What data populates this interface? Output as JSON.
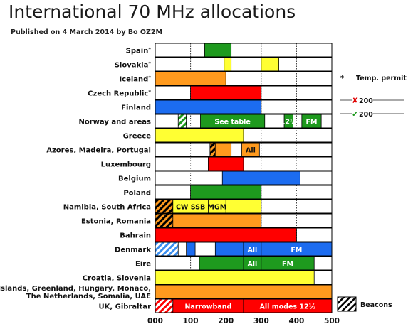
{
  "title": "International 70 MHz allocations",
  "subtitle": "Published on 4 March 2014 by Bo OZ2M",
  "colors": {
    "green": "#1e9a1e",
    "yellow": "#ffff33",
    "orange": "#ff9a1e",
    "red": "#ff0000",
    "blue": "#1c6cf0",
    "lightblue": "#3b8ff0"
  },
  "notes": {
    "temp_permit_marker": "*",
    "temp_permit_label": "Temp. permit",
    "cross_label": "200",
    "check_label": "200",
    "beacons_label": "Beacons"
  },
  "chart_data": {
    "type": "bar",
    "orientation": "horizontal",
    "xlabel": "",
    "ylabel": "",
    "xlim": [
      0,
      500
    ],
    "x_ticks": [
      0,
      100,
      200,
      300,
      400,
      500
    ],
    "x_tick_labels": [
      "000",
      "100",
      "200",
      "300",
      "400",
      "500"
    ],
    "grid": true,
    "categories": [
      "Spain*",
      "Slovakia*",
      "Iceland*",
      "Czech Republic*",
      "Finland",
      "Norway and areas",
      "Greece",
      "Azores, Madeira, Portugal",
      "Luxembourg",
      "Belgium",
      "Poland",
      "Namibia, South Africa",
      "Estonia, Romania",
      "Bahrain",
      "Denmark",
      "Eire",
      "Croatia, Slovenia",
      "Faeroe Islands, Greenland, Hungary, Monaco, The Netherlands, Somalia, UAE",
      "UK, Gibraltar"
    ],
    "rows": [
      {
        "label": "Spain",
        "mark": "*",
        "segments": [
          {
            "from": 140,
            "to": 215,
            "color": "green"
          }
        ]
      },
      {
        "label": "Slovakia",
        "mark": "*",
        "segments": [
          {
            "from": 195,
            "to": 215,
            "color": "yellow"
          },
          {
            "from": 300,
            "to": 350,
            "color": "yellow"
          }
        ]
      },
      {
        "label": "Iceland",
        "mark": "*",
        "segments": [
          {
            "from": 0,
            "to": 200,
            "color": "orange"
          }
        ]
      },
      {
        "label": "Czech Republic",
        "mark": "*",
        "segments": [
          {
            "from": 100,
            "to": 300,
            "color": "red"
          }
        ]
      },
      {
        "label": "Finland",
        "mark": "",
        "segments": [
          {
            "from": 0,
            "to": 300,
            "color": "blue"
          }
        ]
      },
      {
        "label": "Norway and areas",
        "mark": "",
        "segments": [
          {
            "from": 65,
            "to": 88,
            "color": "green",
            "pattern": "hatch-green"
          },
          {
            "from": 128,
            "to": 310,
            "color": "green",
            "text": "See table"
          },
          {
            "from": 365,
            "to": 390,
            "color": "green",
            "text": "12½"
          },
          {
            "from": 415,
            "to": 470,
            "color": "green",
            "text": "FM"
          }
        ]
      },
      {
        "label": "Greece",
        "mark": "",
        "segments": [
          {
            "from": 0,
            "to": 250,
            "color": "yellow"
          }
        ]
      },
      {
        "label": "Azores, Madeira, Portugal",
        "mark": "",
        "segments": [
          {
            "from": 155,
            "to": 170,
            "color": "orange",
            "pattern": "hatch-black"
          },
          {
            "from": 170,
            "to": 215,
            "color": "orange"
          },
          {
            "from": 245,
            "to": 295,
            "color": "orange",
            "text": "All"
          }
        ]
      },
      {
        "label": "Luxembourg",
        "mark": "",
        "segments": [
          {
            "from": 150,
            "to": 250,
            "color": "red"
          }
        ]
      },
      {
        "label": "Belgium",
        "mark": "",
        "segments": [
          {
            "from": 190,
            "to": 410,
            "color": "blue"
          }
        ]
      },
      {
        "label": "Poland",
        "mark": "",
        "segments": [
          {
            "from": 100,
            "to": 300,
            "color": "green"
          }
        ]
      },
      {
        "label": "Namibia, South Africa",
        "mark": "",
        "segments": [
          {
            "from": 0,
            "to": 50,
            "color": "orange",
            "pattern": "hatch-black"
          },
          {
            "from": 50,
            "to": 300,
            "color": "yellow"
          },
          {
            "from": 50,
            "to": 150,
            "color": "yellow",
            "text": "CW SSB"
          },
          {
            "from": 150,
            "to": 200,
            "color": "yellow",
            "text": "MGM"
          }
        ]
      },
      {
        "label": "Estonia, Romania",
        "mark": "",
        "segments": [
          {
            "from": 0,
            "to": 50,
            "color": "orange",
            "pattern": "hatch-black"
          },
          {
            "from": 50,
            "to": 300,
            "color": "orange"
          }
        ]
      },
      {
        "label": "Bahrain",
        "mark": "",
        "segments": [
          {
            "from": 0,
            "to": 400,
            "color": "red"
          }
        ]
      },
      {
        "label": "Denmark",
        "mark": "",
        "segments": [
          {
            "from": 0,
            "to": 65,
            "color": "lightblue",
            "pattern": "hatch-blue"
          },
          {
            "from": 88,
            "to": 113,
            "color": "blue"
          },
          {
            "from": 170,
            "to": 250,
            "color": "blue"
          },
          {
            "from": 250,
            "to": 300,
            "color": "blue",
            "text": "All"
          },
          {
            "from": 300,
            "to": 500,
            "color": "blue",
            "text": "FM"
          }
        ]
      },
      {
        "label": "Eire",
        "mark": "",
        "segments": [
          {
            "from": 125,
            "to": 300,
            "color": "green"
          },
          {
            "from": 250,
            "to": 300,
            "color": "green",
            "text": "All"
          },
          {
            "from": 300,
            "to": 450,
            "color": "green",
            "text": "FM"
          }
        ]
      },
      {
        "label": "Croatia, Slovenia",
        "mark": "",
        "segments": [
          {
            "from": 0,
            "to": 450,
            "color": "yellow"
          }
        ]
      },
      {
        "label": "Faeroe Islands, Greenland, Hungary, Monaco, The Netherlands, Somalia, UAE",
        "mark": "",
        "segments": [
          {
            "from": 0,
            "to": 500,
            "color": "orange"
          }
        ]
      },
      {
        "label": "UK, Gibraltar",
        "mark": "",
        "segments": [
          {
            "from": 0,
            "to": 50,
            "color": "red",
            "pattern": "hatch-red"
          },
          {
            "from": 50,
            "to": 250,
            "color": "red",
            "text": "Narrowband"
          },
          {
            "from": 250,
            "to": 500,
            "color": "red",
            "text": "All modes 12½"
          }
        ]
      }
    ]
  }
}
